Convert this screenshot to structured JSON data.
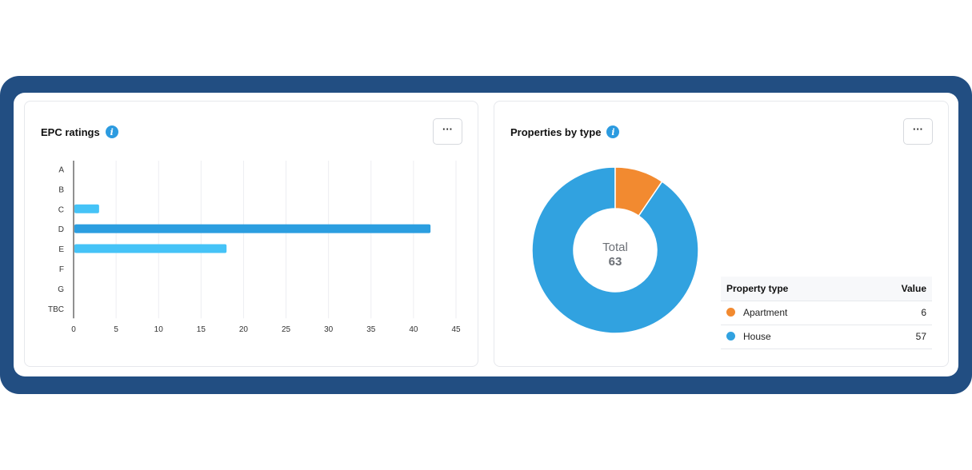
{
  "epc": {
    "title": "EPC ratings",
    "info_icon": "info-icon",
    "more_icon": "ellipsis-icon",
    "more_label": "···"
  },
  "types": {
    "title": "Properties by type",
    "info_icon": "info-icon",
    "more_icon": "ellipsis-icon",
    "more_label": "···",
    "center_label": "Total",
    "center_value": "63",
    "table": {
      "headers": [
        "Property type",
        "Value"
      ],
      "rows": [
        {
          "label": "Apartment",
          "value": "6",
          "color": "#f28a30"
        },
        {
          "label": "House",
          "value": "57",
          "color": "#31a2e0"
        }
      ]
    }
  },
  "chart_data": [
    {
      "type": "bar",
      "orientation": "horizontal",
      "title": "EPC ratings",
      "categories": [
        "A",
        "B",
        "C",
        "D",
        "E",
        "F",
        "G",
        "TBC"
      ],
      "values": [
        0,
        0,
        3,
        42,
        18,
        0,
        0,
        0
      ],
      "xlim": [
        0,
        45
      ],
      "xticks": [
        0,
        5,
        10,
        15,
        20,
        25,
        30,
        35,
        40,
        45
      ],
      "grid": true,
      "colors": {
        "C": "#45c3f7",
        "D": "#2b9ee0",
        "E": "#45c3f7"
      }
    },
    {
      "type": "pie",
      "style": "donut",
      "title": "Properties by type",
      "labels": [
        "Apartment",
        "House"
      ],
      "values": [
        6,
        57
      ],
      "colors": [
        "#f28a30",
        "#31a2e0"
      ],
      "total": 63
    }
  ]
}
